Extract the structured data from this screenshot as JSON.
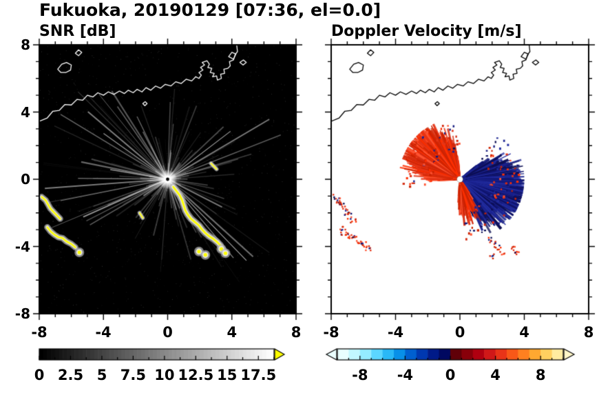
{
  "title": "Fukuoka, 20190129 [07:36, el=0.0]",
  "panels": {
    "snr": {
      "subtitle": "SNR [dB]",
      "x_tick_labels": [
        "-8",
        "-4",
        "0",
        "4",
        "8"
      ],
      "y_tick_labels": [
        "8",
        "4",
        "0",
        "-4",
        "-8"
      ],
      "colorbar_labels": [
        "0",
        "2.5",
        "5",
        "7.5",
        "10",
        "12.5",
        "15",
        "17.5"
      ]
    },
    "doppler": {
      "subtitle": "Doppler Velocity [m/s]",
      "x_tick_labels": [
        "-8",
        "-4",
        "0",
        "4",
        "8"
      ],
      "colorbar_labels": [
        "-8",
        "-4",
        "0",
        "4",
        "8"
      ]
    }
  },
  "chart_data": [
    {
      "type": "heatmap",
      "panel": "left",
      "title": "SNR [dB]",
      "xlim": [
        -8,
        8
      ],
      "ylim": [
        -8,
        8
      ],
      "x_ticks": [
        -8,
        -4,
        0,
        4,
        8
      ],
      "y_ticks": [
        -8,
        -4,
        0,
        4,
        8
      ],
      "background": "#000000",
      "colorbar": {
        "ticks": [
          0,
          2.5,
          5,
          7.5,
          10,
          12.5,
          15,
          17.5
        ],
        "range": [
          0,
          18.75
        ],
        "colormap": "grayscale black-to-white",
        "over_color": "#ffff00",
        "orientation": "horizontal"
      },
      "features": [
        "radar located at (0,0), bright white radial interference streaks in all directions",
        "yellow high-SNR echo arc curving from (0.4,-0.5) southeast to (3.3,-4.0)",
        "detached yellow echo blobs near (2.0,-4.3) and (3.5,-4.3)",
        "yellow echo bands with gray halos near (-7.5,-1.5) and (-6.8,-3.5)",
        "white coastline of Fukuoka across top of domain with harbor structures near (2,6)-(4,7)"
      ]
    },
    {
      "type": "heatmap",
      "panel": "right",
      "title": "Doppler Velocity [m/s]",
      "xlim": [
        -8,
        8
      ],
      "ylim": [
        -8,
        8
      ],
      "x_ticks": [
        -8,
        -4,
        0,
        4,
        8
      ],
      "y_ticks": [
        -8,
        -4,
        0,
        4,
        8
      ],
      "background": "#ffffff",
      "colorbar": {
        "ticks": [
          -8,
          -4,
          0,
          4,
          8
        ],
        "range": [
          -10,
          10
        ],
        "colormap": "cyan-blue-navy to darkred-red-orange-paleyellow",
        "orientation": "horizontal"
      },
      "features": [
        "red (positive) velocity fan northwest/north of radar out to radius ~3.5",
        "dark navy (negative) velocity fan east to south-southeast of radar out to radius ~3.5",
        "white radar dot at (0,0)",
        "red/navy echo specks near (-7.5,-1.5) and (-6.8,-3.5)",
        "red specks near (1.8,-3.7) to (3.6,-4.4)",
        "black coastline across top of domain"
      ]
    }
  ],
  "render": {
    "coastline": {
      "main": [
        [
          -8,
          3.45
        ],
        [
          -7.5,
          3.65
        ],
        [
          -7.15,
          4.05
        ],
        [
          -6.75,
          4.1
        ],
        [
          -6.4,
          4.45
        ],
        [
          -6,
          4.42
        ],
        [
          -5.65,
          4.75
        ],
        [
          -5.3,
          4.7
        ],
        [
          -5,
          5
        ],
        [
          -4.65,
          4.9
        ],
        [
          -4.35,
          5.15
        ],
        [
          -4,
          5
        ],
        [
          -3.7,
          5.2
        ],
        [
          -3.35,
          5.05
        ],
        [
          -3,
          5.25
        ],
        [
          -2.7,
          5.1
        ],
        [
          -2.45,
          5.3
        ],
        [
          -2.15,
          5.15
        ],
        [
          -1.9,
          5.35
        ],
        [
          -1.6,
          5.2
        ],
        [
          -1.35,
          5.45
        ],
        [
          -1.05,
          5.3
        ],
        [
          -0.75,
          5.55
        ],
        [
          -0.45,
          5.42
        ],
        [
          -0.15,
          5.65
        ],
        [
          0.2,
          5.55
        ],
        [
          0.5,
          5.8
        ],
        [
          0.85,
          5.7
        ],
        [
          1.15,
          5.95
        ],
        [
          1.5,
          5.85
        ],
        [
          1.75,
          6.1
        ]
      ],
      "harbor": [
        [
          1.75,
          6.1
        ],
        [
          1.95,
          6
        ],
        [
          2.1,
          6.2
        ],
        [
          1.95,
          6.35
        ],
        [
          2.2,
          6.5
        ],
        [
          2.05,
          6.65
        ],
        [
          2.3,
          6.8
        ],
        [
          2.15,
          6.95
        ],
        [
          2.45,
          7.05
        ],
        [
          2.6,
          6.85
        ],
        [
          2.5,
          6.65
        ],
        [
          2.75,
          6.6
        ],
        [
          2.65,
          6.35
        ],
        [
          2.9,
          6.3
        ],
        [
          2.8,
          6.1
        ],
        [
          3.05,
          6.15
        ],
        [
          3.1,
          5.9
        ],
        [
          3.35,
          6
        ],
        [
          3.3,
          6.25
        ],
        [
          3.55,
          6.3
        ],
        [
          3.5,
          6.55
        ],
        [
          3.75,
          6.6
        ],
        [
          3.9,
          6.75
        ],
        [
          3.85,
          7
        ],
        [
          4.1,
          7.1
        ],
        [
          4.2,
          7.4
        ],
        [
          4.35,
          7.6
        ],
        [
          4.3,
          8
        ]
      ],
      "islands": [
        [
          [
            -6.85,
            6.55
          ],
          [
            -6.6,
            6.85
          ],
          [
            -6.3,
            6.95
          ],
          [
            -6,
            6.8
          ],
          [
            -6.05,
            6.5
          ],
          [
            -6.35,
            6.35
          ],
          [
            -6.65,
            6.35
          ]
        ],
        [
          [
            -5.75,
            7.5
          ],
          [
            -5.55,
            7.7
          ],
          [
            -5.35,
            7.55
          ],
          [
            -5.55,
            7.35
          ]
        ],
        [
          [
            -1.55,
            4.5
          ],
          [
            -1.4,
            4.62
          ],
          [
            -1.28,
            4.5
          ],
          [
            -1.42,
            4.38
          ]
        ],
        [
          [
            3.8,
            7.3
          ],
          [
            4,
            7.55
          ],
          [
            4.25,
            7.45
          ],
          [
            4.1,
            7.15
          ]
        ],
        [
          [
            4.5,
            6.95
          ],
          [
            4.72,
            7.1
          ],
          [
            4.9,
            6.95
          ],
          [
            4.7,
            6.8
          ]
        ]
      ]
    },
    "snr": {
      "background": "#000000",
      "coast_color": "#ffffff",
      "streak_color": "#ffffff",
      "echo_core_color": "#ffff00",
      "echo_halo_color": "#b9b9b9",
      "arc": [
        [
          0.35,
          -0.45
        ],
        [
          0.55,
          -0.7
        ],
        [
          0.75,
          -0.95
        ],
        [
          0.9,
          -1.25
        ],
        [
          1,
          -1.55
        ],
        [
          1.1,
          -1.85
        ],
        [
          1.25,
          -2.1
        ],
        [
          1.45,
          -2.35
        ],
        [
          1.7,
          -2.55
        ],
        [
          1.95,
          -2.75
        ],
        [
          2.15,
          -3
        ],
        [
          2.35,
          -3.2
        ],
        [
          2.6,
          -3.4
        ],
        [
          2.85,
          -3.55
        ],
        [
          3.1,
          -3.75
        ],
        [
          3.3,
          -3.95
        ]
      ],
      "arc_extra_blobs": [
        [
          1.95,
          -4.3
        ],
        [
          2.35,
          -4.5
        ],
        [
          3.35,
          -4.15
        ],
        [
          3.6,
          -4.4
        ]
      ],
      "west_chain_a": [
        [
          -7.85,
          -1.05
        ],
        [
          -7.6,
          -1.25
        ],
        [
          -7.45,
          -1.5
        ],
        [
          -7.3,
          -1.75
        ],
        [
          -7.1,
          -1.95
        ],
        [
          -6.9,
          -2.15
        ],
        [
          -6.7,
          -2.35
        ]
      ],
      "west_chain_b": [
        [
          -7.5,
          -2.85
        ],
        [
          -7.3,
          -3.1
        ],
        [
          -7.05,
          -3.3
        ],
        [
          -6.8,
          -3.45
        ],
        [
          -6.55,
          -3.5
        ],
        [
          -6.3,
          -3.7
        ],
        [
          -6,
          -3.85
        ],
        [
          -5.75,
          -4.05
        ]
      ],
      "lone_blobs": [
        [
          -5.5,
          -4.35
        ]
      ],
      "dashes": [
        [
          [
            2.7,
            0.95
          ],
          [
            3.05,
            0.6
          ]
        ],
        [
          [
            -1.75,
            -2
          ],
          [
            -1.55,
            -2.3
          ]
        ]
      ]
    },
    "doppler": {
      "background": "#ffffff",
      "coast_color": "#000000",
      "center_dot_color": "#ffffff",
      "red_colors": [
        "#ff2f00",
        "#e53517",
        "#cc2200",
        "#ff5533",
        "#d42b10"
      ],
      "navy_colors": [
        "#141a7e",
        "#0f1268",
        "#1b2390",
        "#0c0e52",
        "#232da0"
      ],
      "red_fan_deg": [
        95,
        183
      ],
      "navy_fan_deg": [
        -78,
        40
      ]
    },
    "snr_colorbar": {
      "range": [
        0,
        18.75
      ],
      "tick_step": 1.25,
      "over_arrow_color": "#ffff00"
    },
    "doppler_colorbar": {
      "range": [
        -10,
        10
      ],
      "tick_step": 1,
      "segment_colors": [
        "#e8ffff",
        "#c2f8ff",
        "#94ecff",
        "#5cd6ff",
        "#2ab8f7",
        "#0890e8",
        "#0060d0",
        "#0038b0",
        "#001a88",
        "#000860",
        "#600008",
        "#88000a",
        "#b00010",
        "#d01818",
        "#e83418",
        "#f85818",
        "#ff8020",
        "#ffa830",
        "#ffd060",
        "#ffeca0"
      ],
      "under_arrow_color": "#eaffff",
      "over_arrow_color": "#fff6c8"
    }
  }
}
